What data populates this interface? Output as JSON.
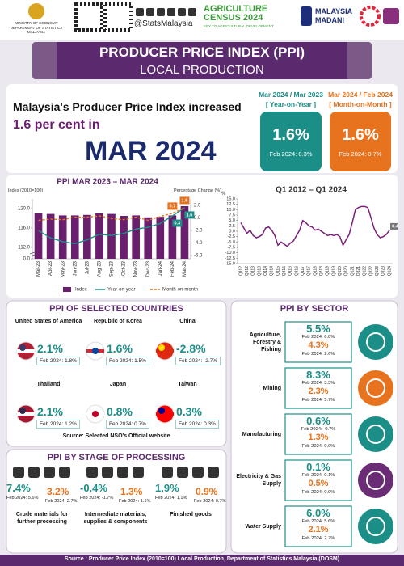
{
  "header": {
    "ministry": "MINISTRY OF ECONOMY",
    "department": "DEPARTMENT OF STATISTICS MALAYSIA",
    "handle": "@StatsMalaysia",
    "census_title": "AGRICULTURE CENSUS 2024",
    "census_sub": "KEY TO AGRICULTURAL DEVELOPMENT",
    "madani": "MALAYSIA MADANI"
  },
  "banner": {
    "title": "PRODUCER PRICE INDEX (PPI)",
    "subtitle": "LOCAL PRODUCTION"
  },
  "headline": {
    "line1": "Malaysia's Producer Price Index increased",
    "line2": "1.6 per cent in",
    "period": "MAR 2024"
  },
  "yoy": {
    "period": "Mar 2024 / Mar 2023",
    "label": "[ Year-on-Year ]",
    "value": "1.6%",
    "previous": "Feb 2024: 0.3%"
  },
  "mom": {
    "period": "Mar 2024 / Feb 2024",
    "label": "[ Month-on-Month ]",
    "value": "1.6%",
    "previous": "Feb 2024: 0.7%"
  },
  "chart_data": [
    {
      "type": "bar",
      "title": "PPI MAR 2023 – MAR 2024",
      "y_label": "Index (2010=100)",
      "y2_label": "Percentage Change (%)",
      "categories": [
        "Mar-23",
        "Apr-23",
        "May-23",
        "Jun-23",
        "Jul-23",
        "Aug-23",
        "Sep-23",
        "Oct-23",
        "Nov-23",
        "Dec-23",
        "Jan-24",
        "Feb-24",
        "Mar-24"
      ],
      "series": [
        {
          "name": "Index",
          "color": "#6a1f6e",
          "values": [
            119.0,
            118.9,
            118.6,
            118.6,
            118.7,
            119.0,
            118.9,
            118.5,
            118.6,
            118.2,
            118.3,
            118.6,
            120.5
          ]
        },
        {
          "name": "Year-on-year",
          "color": "#1b8f87",
          "axis": "y2",
          "values": [
            -2.0,
            -3.2,
            -3.8,
            -4.1,
            -3.5,
            -2.6,
            -2.8,
            -2.5,
            -1.8,
            -1.5,
            -0.9,
            0.3,
            1.6
          ]
        },
        {
          "name": "Month-on-month",
          "color": "#e8731e",
          "axis": "y2",
          "dashed": true,
          "values": [
            -0.4,
            -0.2,
            -0.3,
            0.1,
            0.1,
            0.3,
            -0.1,
            -0.3,
            0.1,
            -0.4,
            0.2,
            0.7,
            1.6
          ]
        }
      ],
      "ylim": [
        0,
        122
      ],
      "axis_break": [
        0,
        111
      ],
      "yticks": [
        {
          "value": 0,
          "label": "0.0"
        },
        {
          "value": 112,
          "label": "112.0"
        },
        {
          "value": 116,
          "label": "116.0"
        },
        {
          "value": 120,
          "label": "120.0"
        }
      ],
      "y2lim": [
        -6.5,
        3
      ],
      "y2ticks": [
        {
          "value": 2,
          "label": "2.0"
        },
        {
          "value": 0,
          "label": "0.0"
        },
        {
          "value": -2,
          "label": "-2.0"
        },
        {
          "value": -4,
          "label": "-4.0"
        },
        {
          "value": -6,
          "label": "-6.0"
        }
      ]
    },
    {
      "type": "line",
      "title": "Q1 2012 – Q1 2024",
      "y_label": "%",
      "color": "#7b1f7b",
      "categories": [
        "Q112",
        null,
        "Q312",
        null,
        "Q113",
        null,
        "Q313",
        null,
        "Q114",
        null,
        "Q314",
        null,
        "Q115",
        null,
        "Q315",
        null,
        "Q116",
        null,
        "Q316",
        null,
        "Q117",
        null,
        "Q317",
        null,
        "Q118",
        null,
        "Q318",
        null,
        "Q119",
        null,
        "Q319",
        null,
        "Q120",
        null,
        "Q320",
        null,
        "Q121",
        null,
        "Q321",
        null,
        "Q122",
        null,
        "Q322",
        null,
        "Q123",
        null,
        "Q323",
        null,
        "Q124"
      ],
      "values": [
        4.0,
        1.5,
        -1.0,
        0.5,
        -2.0,
        -3.0,
        -2.5,
        -1.5,
        1.5,
        2.0,
        0.5,
        -2.0,
        -6.5,
        -5.0,
        -6.0,
        -7.0,
        -5.5,
        -4.5,
        -2.0,
        0.5,
        5.0,
        4.0,
        2.5,
        2.0,
        0.5,
        1.0,
        0.0,
        -1.0,
        -2.0,
        -1.5,
        -2.0,
        -1.5,
        -2.5,
        -6.5,
        -4.0,
        -1.5,
        4.0,
        10.0,
        11.0,
        11.5,
        11.5,
        11.0,
        6.5,
        1.5,
        -1.5,
        -3.0,
        -2.5,
        -1.5,
        0.4
      ],
      "ylim": [
        -15,
        15
      ],
      "yticks": [
        {
          "value": 15,
          "label": "15.0"
        },
        {
          "value": 12.5,
          "label": "12.5"
        },
        {
          "value": 10,
          "label": "10.0"
        },
        {
          "value": 7.5,
          "label": "7.5"
        },
        {
          "value": 5,
          "label": "5.0"
        },
        {
          "value": 2.5,
          "label": "2.5"
        },
        {
          "value": 0,
          "label": "0.0"
        },
        {
          "value": -2.5,
          "label": "-2.5"
        },
        {
          "value": -5,
          "label": "-5.0"
        },
        {
          "value": -7.5,
          "label": "-7.5"
        },
        {
          "value": -10,
          "label": "-10.0"
        },
        {
          "value": -12.5,
          "label": "-12.5"
        },
        {
          "value": -15,
          "label": "-15.0"
        }
      ]
    }
  ],
  "countries": {
    "title": "PPI OF SELECTED COUNTRIES",
    "source": "Source: Selected NSO's Official website",
    "items": [
      {
        "name": "United States of America",
        "value": "2.1%",
        "previous": "Feb 2024: 1.8%"
      },
      {
        "name": "Republic of Korea",
        "value": "1.6%",
        "previous": "Feb 2024: 1.5%"
      },
      {
        "name": "China",
        "value": "-2.8%",
        "previous": "Feb 2024: -2.7%"
      },
      {
        "name": "Thailand",
        "value": "2.1%",
        "previous": "Feb 2024: 1.2%"
      },
      {
        "name": "Japan",
        "value": "0.8%",
        "previous": "Feb 2024: 0.7%"
      },
      {
        "name": "Taiwan",
        "value": "0.3%",
        "previous": "Feb 2024: 0.3%"
      }
    ]
  },
  "stages": {
    "title": "PPI BY STAGE OF PROCESSING",
    "items": [
      {
        "label": "Crude materials for further processing",
        "yoy": {
          "value": "7.4%",
          "previous": "Feb 2024: 5.6%"
        },
        "mom": {
          "value": "3.2%",
          "previous": "Feb 2024: 2.7%"
        }
      },
      {
        "label": "Intermediate materials, supplies & components",
        "yoy": {
          "value": "-0.4%",
          "previous": "Feb 2024: -1.7%"
        },
        "mom": {
          "value": "1.3%",
          "previous": "Feb 2024: 1.1%"
        }
      },
      {
        "label": "Finished goods",
        "yoy": {
          "value": "1.9%",
          "previous": "Feb 2024: 1.1%"
        },
        "mom": {
          "value": "0.9%",
          "previous": "Feb 2024: 0.7%"
        }
      }
    ]
  },
  "sectors": {
    "title": "PPI BY SECTOR",
    "items": [
      {
        "name": "Agriculture, Forestry & Fishing",
        "yoy": {
          "value": "5.5%",
          "previous": "Feb 2024: 6.8%"
        },
        "mom": {
          "value": "4.3%",
          "previous": "Feb 2024: 2.6%"
        }
      },
      {
        "name": "Mining",
        "yoy": {
          "value": "8.3%",
          "previous": "Feb 2024: 3.3%"
        },
        "mom": {
          "value": "2.3%",
          "previous": "Feb 2024: 5.7%"
        }
      },
      {
        "name": "Manufacturing",
        "yoy": {
          "value": "0.6%",
          "previous": "Feb 2024: -0.7%"
        },
        "mom": {
          "value": "1.3%",
          "previous": "Feb 2024: 0.0%"
        }
      },
      {
        "name": "Electricity & Gas Supply",
        "yoy": {
          "value": "0.1%",
          "previous": "Feb 2024: 0.1%"
        },
        "mom": {
          "value": "0.5%",
          "previous": "Feb 2024: 0.9%"
        }
      },
      {
        "name": "Water Supply",
        "yoy": {
          "value": "6.0%",
          "previous": "Feb 2024: 5.6%"
        },
        "mom": {
          "value": "2.1%",
          "previous": "Feb 2024: 2.7%"
        }
      }
    ]
  },
  "footer": "Source : Producer Price Index (2010=100) Local Production, Department of Statistics Malaysia (DOSM)"
}
